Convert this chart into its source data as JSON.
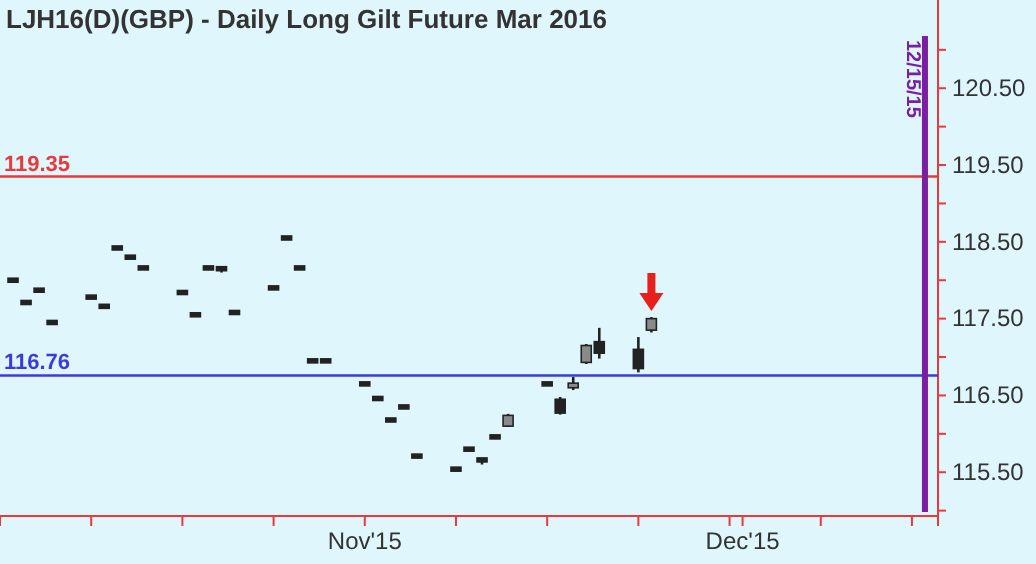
{
  "chart_data": {
    "type": "candlestick",
    "title": "LJH16(D)(GBP) - Daily  Long Gilt Future Mar 2016",
    "x": [
      "2015-10-06",
      "2015-10-07",
      "2015-10-08",
      "2015-10-09",
      "2015-10-12",
      "2015-10-13",
      "2015-10-14",
      "2015-10-15",
      "2015-10-16",
      "2015-10-19",
      "2015-10-20",
      "2015-10-21",
      "2015-10-22",
      "2015-10-23",
      "2015-10-26",
      "2015-10-27",
      "2015-10-28",
      "2015-10-29",
      "2015-10-30",
      "2015-11-02",
      "2015-11-03",
      "2015-11-04",
      "2015-11-05",
      "2015-11-06",
      "2015-11-09",
      "2015-11-10",
      "2015-11-11",
      "2015-11-12",
      "2015-11-13",
      "2015-11-16",
      "2015-11-17",
      "2015-11-18",
      "2015-11-19",
      "2015-11-20",
      "2015-11-23",
      "2015-11-24"
    ],
    "ohlc": [
      [
        118.0,
        118.02,
        117.98,
        118.0
      ],
      [
        117.71,
        117.73,
        117.69,
        117.71
      ],
      [
        117.87,
        117.89,
        117.85,
        117.87
      ],
      [
        117.45,
        117.47,
        117.43,
        117.45
      ],
      [
        117.78,
        117.8,
        117.76,
        117.78
      ],
      [
        117.66,
        117.68,
        117.64,
        117.66
      ],
      [
        118.42,
        118.44,
        118.4,
        118.42
      ],
      [
        118.3,
        118.32,
        118.28,
        118.3
      ],
      [
        118.16,
        118.18,
        118.14,
        118.16
      ],
      [
        117.84,
        117.86,
        117.82,
        117.84
      ],
      [
        117.55,
        117.57,
        117.53,
        117.55
      ],
      [
        118.16,
        118.18,
        118.14,
        118.16
      ],
      [
        118.16,
        118.17,
        118.1,
        118.14
      ],
      [
        117.58,
        117.6,
        117.56,
        117.58
      ],
      [
        117.9,
        117.92,
        117.88,
        117.9
      ],
      [
        118.55,
        118.57,
        118.53,
        118.55
      ],
      [
        118.16,
        118.18,
        118.14,
        118.16
      ],
      [
        116.95,
        116.97,
        116.93,
        116.95
      ],
      [
        116.95,
        116.97,
        116.93,
        116.95
      ],
      [
        116.65,
        116.67,
        116.63,
        116.65
      ],
      [
        116.46,
        116.48,
        116.44,
        116.46
      ],
      [
        116.18,
        116.2,
        116.16,
        116.18
      ],
      [
        116.35,
        116.37,
        116.33,
        116.35
      ],
      [
        115.71,
        115.73,
        115.69,
        115.71
      ],
      [
        115.54,
        115.56,
        115.52,
        115.54
      ],
      [
        115.8,
        115.82,
        115.78,
        115.8
      ],
      [
        115.66,
        115.68,
        115.6,
        115.66
      ],
      [
        115.96,
        115.98,
        115.94,
        115.96
      ],
      [
        116.1,
        116.26,
        116.09,
        116.24
      ],
      [
        116.65,
        116.67,
        116.63,
        116.65
      ],
      [
        116.45,
        116.48,
        116.25,
        116.27
      ],
      [
        116.6,
        116.74,
        116.57,
        116.66
      ],
      [
        116.93,
        117.17,
        116.91,
        117.15
      ],
      [
        117.2,
        117.38,
        116.98,
        117.05
      ],
      [
        117.1,
        117.26,
        116.8,
        116.85
      ],
      [
        117.35,
        117.52,
        117.32,
        117.5
      ]
    ],
    "xlim": [
      "2015-10-05",
      "2015-12-16"
    ],
    "xticks": [
      {
        "value": "2015-10-12",
        "label": null
      },
      {
        "value": "2015-10-19",
        "label": null
      },
      {
        "value": "2015-10-26",
        "label": null
      },
      {
        "value": "2015-11-02",
        "label": "Nov'15"
      },
      {
        "value": "2015-11-09",
        "label": null
      },
      {
        "value": "2015-11-16",
        "label": null
      },
      {
        "value": "2015-11-23",
        "label": null
      },
      {
        "value": "2015-11-30",
        "label": null
      },
      {
        "value": "2015-12-01",
        "label": "Dec'15"
      },
      {
        "value": "2015-12-07",
        "label": null
      },
      {
        "value": "2015-12-14",
        "label": null
      }
    ],
    "ylim": [
      114.93,
      121.18
    ],
    "yticks": [
      {
        "value": 115,
        "label": null
      },
      {
        "value": 115.5,
        "label": "115.50"
      },
      {
        "value": 116,
        "label": null
      },
      {
        "value": 116.5,
        "label": "116.50"
      },
      {
        "value": 117,
        "label": null
      },
      {
        "value": 117.5,
        "label": "117.50"
      },
      {
        "value": 118,
        "label": null
      },
      {
        "value": 118.5,
        "label": "118.50"
      },
      {
        "value": 119,
        "label": null
      },
      {
        "value": 119.5,
        "label": "119.50"
      },
      {
        "value": 120,
        "label": null
      },
      {
        "value": 120.5,
        "label": "120.50"
      },
      {
        "value": 121,
        "label": null
      }
    ],
    "ref_lines": [
      {
        "axis": "y",
        "value": 119.35,
        "label": "119.35",
        "color": "#e8393b"
      },
      {
        "axis": "y",
        "value": 116.76,
        "label": "116.76",
        "color": "#3a3ae0"
      },
      {
        "axis": "x",
        "value": "2015-12-15",
        "label": "12/15/15",
        "color": "#7b1fa2"
      }
    ],
    "color": "#222222"
  }
}
